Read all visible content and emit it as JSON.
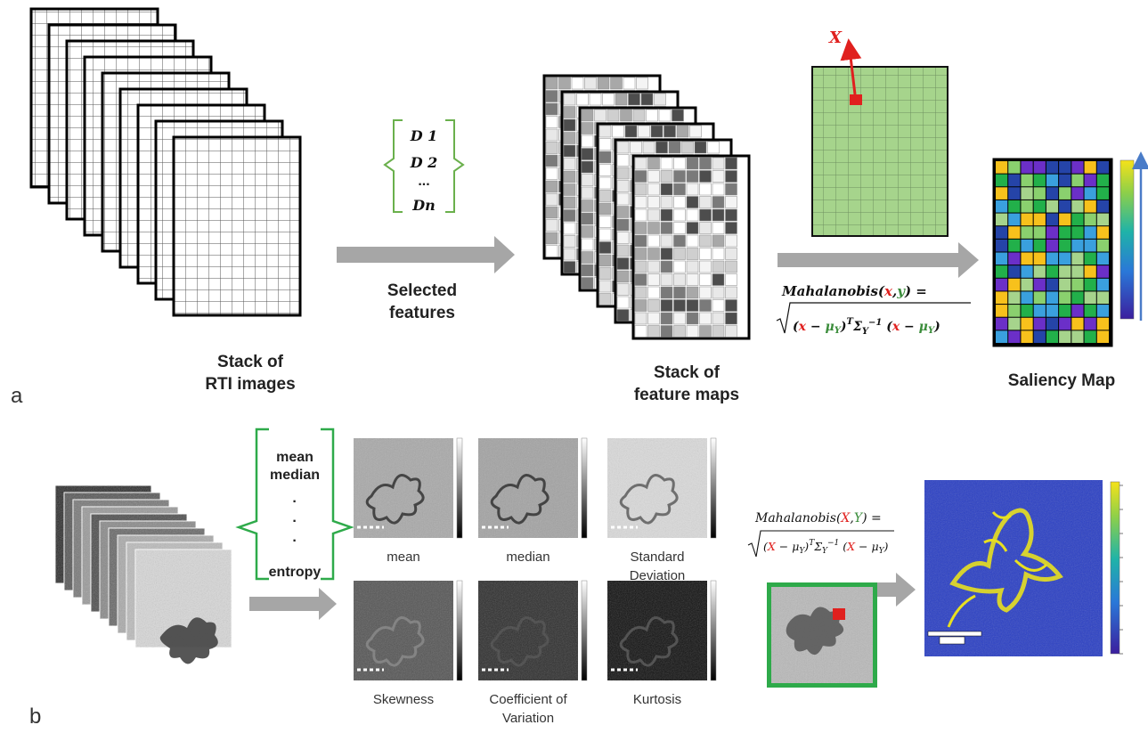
{
  "panel_labels": {
    "a": "a",
    "b": "b"
  },
  "panel_a": {
    "stack_label": [
      "Stack of",
      "RTI images"
    ],
    "descriptors": [
      "D 1",
      "D 2",
      "...",
      "Dn"
    ],
    "selected_features_label": [
      "Selected",
      "features"
    ],
    "feature_stack_label": [
      "Stack of",
      "feature maps"
    ],
    "pixel_label": "X",
    "formula": {
      "lhs": "Mahalanobis",
      "open": "(",
      "var_x": "x",
      "comma": ",",
      "var_y": "y",
      "close": ") =",
      "r1": "(",
      "r2": "x",
      "r3": " − ",
      "r4": "μ",
      "r4s": "Y",
      "r5": ")",
      "r6": "T",
      "r7": "Σ",
      "r7s": "Y",
      "r7e": "−1",
      "r8": " (",
      "r9": "x",
      "r10": " − ",
      "r11": "μ",
      "r11s": "Y",
      "r12": ")"
    },
    "saliency_label": "Saliency Map",
    "colors": {
      "green_cell": "#a6d48c",
      "red_pixel": "#e0201e",
      "formula_red": "#e0201e",
      "formula_green": "#3a8c3a",
      "arrow_gray": "#a6a6a6",
      "bracket_green": "#6ab04c",
      "scale_arrow": "#4a7cc8"
    }
  },
  "panel_b": {
    "features": [
      "mean",
      "median",
      "·",
      "·",
      "·",
      "entropy"
    ],
    "maps": [
      {
        "name": "mean",
        "label": [
          "mean"
        ]
      },
      {
        "name": "median",
        "label": [
          "median"
        ]
      },
      {
        "name": "std",
        "label": [
          "Standard",
          "Deviation"
        ]
      },
      {
        "name": "skew",
        "label": [
          "Skewness"
        ]
      },
      {
        "name": "cv",
        "label": [
          "Coefficient of",
          "Variation"
        ]
      },
      {
        "name": "kurt",
        "label": [
          "Kurtosis"
        ]
      }
    ],
    "formula": {
      "lhs": "Mahalanobis",
      "open": "(",
      "var_x": "X",
      "comma": ",",
      "var_y": "Y",
      "close": ") =",
      "r1": "(",
      "r2": "X",
      "r3": " − ",
      "r4": "μ",
      "r4s": "Y",
      "r5": ")",
      "r6": "T",
      "r7": "Σ",
      "r7s": "Y",
      "r7e": "−1",
      "r8": " (",
      "r9": "X",
      "r10": " − ",
      "r11": "μ",
      "r11s": "Y",
      "r12": ")"
    },
    "colors": {
      "bracket_green": "#2eaa4a",
      "frame_green": "#2eaa4a",
      "saliency_bg": "#2a3fc4",
      "saliency_hot": "#e8e020"
    }
  }
}
